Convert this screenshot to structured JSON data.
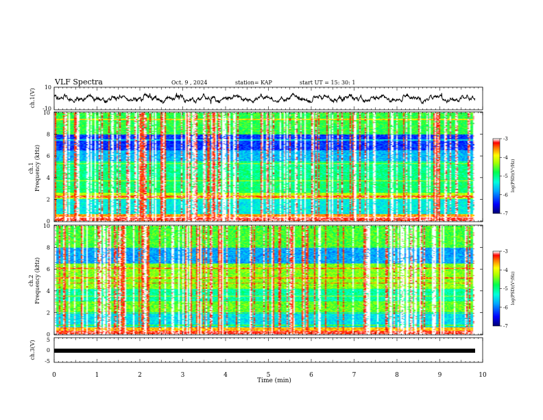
{
  "header": {
    "title": "VLF Spectra",
    "date": "Oct. 9 , 2024",
    "station": "station= KAP",
    "start": "start UT = 15: 30: 1"
  },
  "chart_data": [
    {
      "type": "line",
      "panel": "ch1-waveform",
      "ylabel": "ch.1(V)",
      "ylim": [
        -10,
        10
      ],
      "yticks": [
        "10",
        "-10"
      ],
      "xlim": [
        0,
        10
      ],
      "series": [
        {
          "style": "noisy waveform centered near 0 V, amplitude about ±3 V"
        }
      ],
      "color": "#000000"
    },
    {
      "type": "heatmap",
      "panel": "ch1-spectrogram",
      "ylabel": "Frequency (kHz)",
      "channel_label": "ch.1",
      "ylim": [
        0,
        10
      ],
      "yticks": [
        "0",
        "2",
        "4",
        "6",
        "8",
        "10"
      ],
      "xlim": [
        0,
        9.82
      ],
      "colorbar": {
        "label": "log(PSD)(V²/Hz)",
        "ticks": [
          "-3",
          "-4",
          "-5",
          "-6",
          "-7"
        ],
        "range": [
          -7,
          -3
        ]
      },
      "bands": [
        {
          "from": 0.0,
          "to": 0.6,
          "level": -3.6
        },
        {
          "from": 0.6,
          "to": 2.0,
          "level": -5.4
        },
        {
          "from": 2.0,
          "to": 2.6,
          "level": -4.2
        },
        {
          "from": 2.6,
          "to": 4.0,
          "level": -4.9
        },
        {
          "from": 4.0,
          "to": 5.5,
          "level": -5.0
        },
        {
          "from": 5.5,
          "to": 6.5,
          "level": -5.7
        },
        {
          "from": 6.5,
          "to": 8.0,
          "level": -6.3
        },
        {
          "from": 8.0,
          "to": 10.0,
          "level": -4.7
        }
      ],
      "lines_khz": [
        0.3,
        2.2,
        2.3,
        3.7,
        5.3,
        7.5,
        9.4
      ],
      "sferic_count": 150
    },
    {
      "type": "heatmap",
      "panel": "ch2-spectrogram",
      "ylabel": "Frequency (kHz)",
      "channel_label": "ch.2",
      "ylim": [
        0,
        10
      ],
      "yticks": [
        "0",
        "2",
        "4",
        "6",
        "8",
        "10"
      ],
      "xlim": [
        0,
        9.82
      ],
      "colorbar": {
        "label": "log(PSD)(V²/Hz)",
        "ticks": [
          "-3",
          "-4",
          "-5",
          "-6",
          "-7"
        ],
        "range": [
          -7,
          -3
        ]
      },
      "bands": [
        {
          "from": 0.0,
          "to": 0.6,
          "level": -3.7
        },
        {
          "from": 0.6,
          "to": 2.0,
          "level": -5.5
        },
        {
          "from": 2.0,
          "to": 3.0,
          "level": -4.5
        },
        {
          "from": 3.0,
          "to": 4.2,
          "level": -5.1
        },
        {
          "from": 4.2,
          "to": 6.5,
          "level": -4.4
        },
        {
          "from": 6.5,
          "to": 8.0,
          "level": -5.8
        },
        {
          "from": 8.0,
          "to": 10.0,
          "level": -4.6
        }
      ],
      "lines_khz": [
        0.8,
        1.9,
        3.5,
        4.7,
        5.2,
        6.1
      ],
      "sferic_count": 150
    },
    {
      "type": "line",
      "panel": "ch3-waveform",
      "ylabel": "ch.3(V)",
      "ylim": [
        -5,
        5
      ],
      "yticks": [
        "5",
        "0",
        "-5"
      ],
      "xlim": [
        0,
        10
      ],
      "series": [
        {
          "style": "thick flat trace near 0 V"
        }
      ],
      "color": "#000000"
    }
  ],
  "xaxis": {
    "label": "Time (min)",
    "ticks": [
      "0",
      "1",
      "2",
      "3",
      "4",
      "5",
      "6",
      "7",
      "8",
      "9",
      "10"
    ],
    "range": [
      0,
      10
    ]
  }
}
